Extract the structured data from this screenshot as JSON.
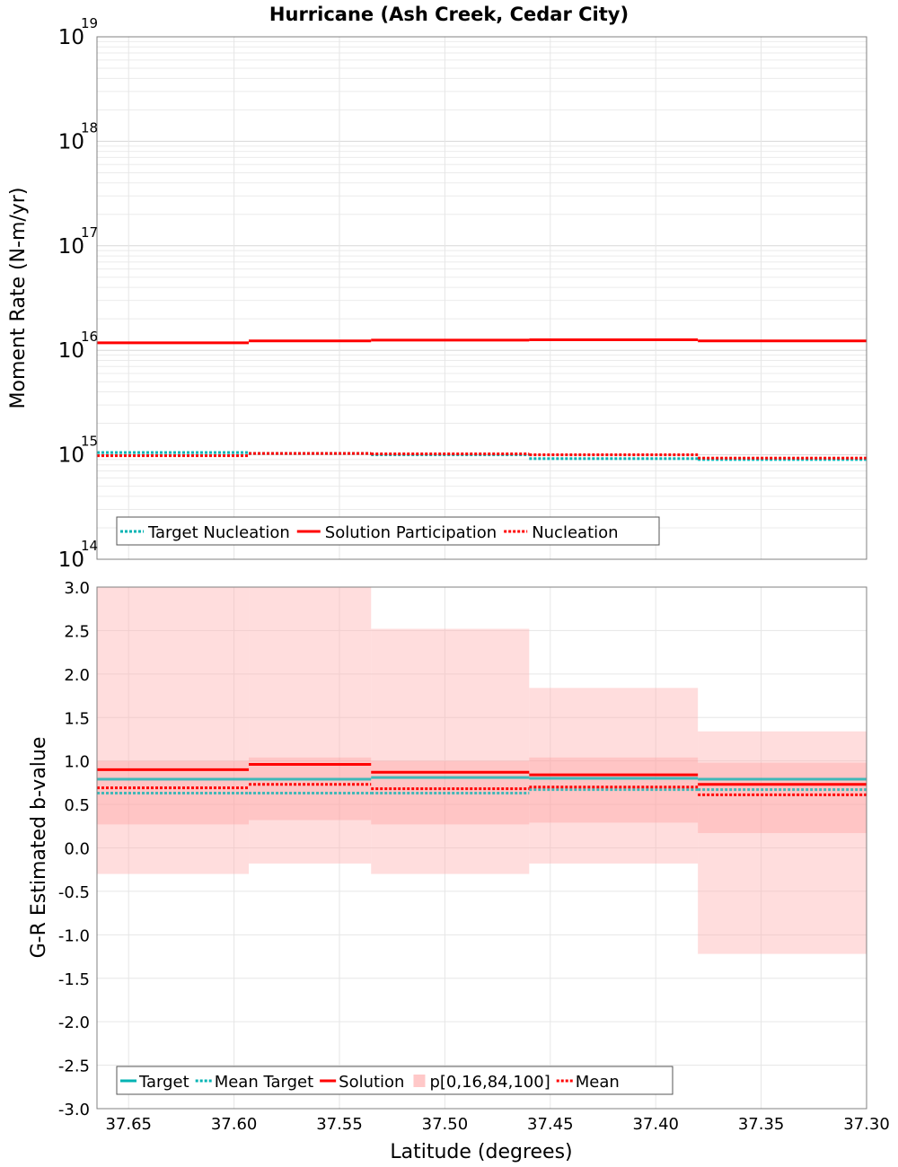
{
  "chart_data": [
    {
      "type": "line",
      "title": "Hurricane (Ash Creek, Cedar City)",
      "ylabel": "Moment Rate (N-m/yr)",
      "xlabel": "",
      "yscale": "log",
      "ylim": [
        100000000000000.0,
        1e+19
      ],
      "xlim": [
        37.665,
        37.3
      ],
      "x_reversed": true,
      "y_ticks": [
        {
          "base": "10",
          "exp": "14",
          "value": 100000000000000.0
        },
        {
          "base": "10",
          "exp": "15",
          "value": 1000000000000000.0
        },
        {
          "base": "10",
          "exp": "16",
          "value": 1e+16
        },
        {
          "base": "10",
          "exp": "17",
          "value": 1e+17
        },
        {
          "base": "10",
          "exp": "18",
          "value": 1e+18
        },
        {
          "base": "10",
          "exp": "19",
          "value": 1e+19
        }
      ],
      "segments": [
        [
          37.665,
          37.593
        ],
        [
          37.593,
          37.535
        ],
        [
          37.535,
          37.46
        ],
        [
          37.46,
          37.38
        ],
        [
          37.38,
          37.3
        ]
      ],
      "series": [
        {
          "name": "Target Nucleation",
          "style": "dotted",
          "color": "#00b3b3",
          "values": [
            1050000000000000.0,
            1030000000000000.0,
            1000000000000000.0,
            920000000000000.0,
            900000000000000.0
          ]
        },
        {
          "name": "Solution Participation",
          "style": "solid",
          "color": "#ff0000",
          "values": [
            1.18e+16,
            1.23e+16,
            1.25e+16,
            1.26e+16,
            1.23e+16
          ]
        },
        {
          "name": "Nucleation",
          "style": "dotted",
          "color": "#ff0000",
          "values": [
            980000000000000.0,
            1030000000000000.0,
            1020000000000000.0,
            1000000000000000.0,
            930000000000000.0
          ]
        }
      ],
      "legend": {
        "position": "bottom-left",
        "items": [
          "Target Nucleation",
          "Solution Participation",
          "Nucleation"
        ]
      },
      "grid": true
    },
    {
      "type": "line",
      "title": "",
      "ylabel": "G-R Estimated b-value",
      "xlabel": "Latitude (degrees)",
      "ylim": [
        -3.0,
        3.0
      ],
      "xlim": [
        37.665,
        37.3
      ],
      "x_reversed": true,
      "x_ticks": [
        "37.65",
        "37.60",
        "37.55",
        "37.50",
        "37.45",
        "37.40",
        "37.35",
        "37.30"
      ],
      "y_ticks": [
        "3.0",
        "2.5",
        "2.0",
        "1.5",
        "1.0",
        "0.5",
        "0.0",
        "-0.5",
        "-1.0",
        "-1.5",
        "-2.0",
        "-2.5",
        "-3.0"
      ],
      "segments": [
        [
          37.665,
          37.593
        ],
        [
          37.593,
          37.535
        ],
        [
          37.535,
          37.46
        ],
        [
          37.46,
          37.38
        ],
        [
          37.38,
          37.3
        ]
      ],
      "bands": {
        "name": "p[0,16,84,100]",
        "outer": [
          [
            -0.3,
            3.0
          ],
          [
            -0.18,
            3.0
          ],
          [
            -0.3,
            2.52
          ],
          [
            -0.18,
            1.84
          ],
          [
            -1.22,
            1.34
          ]
        ],
        "inner": [
          [
            0.27,
            1.0
          ],
          [
            0.32,
            1.04
          ],
          [
            0.27,
            1.0
          ],
          [
            0.29,
            1.04
          ],
          [
            0.17,
            0.98
          ]
        ]
      },
      "series": [
        {
          "name": "Target",
          "style": "solid",
          "color": "#00b3b3",
          "values": [
            0.79,
            0.79,
            0.81,
            0.8,
            0.79
          ]
        },
        {
          "name": "Mean Target",
          "style": "dotted",
          "color": "#00b3b3",
          "values": [
            0.63,
            0.63,
            0.63,
            0.67,
            0.67
          ]
        },
        {
          "name": "Solution",
          "style": "solid",
          "color": "#ff0000",
          "values": [
            0.9,
            0.96,
            0.87,
            0.84,
            0.73
          ]
        },
        {
          "name": "Mean",
          "style": "dotted",
          "color": "#ff0000",
          "values": [
            0.69,
            0.73,
            0.68,
            0.7,
            0.61
          ]
        }
      ],
      "legend": {
        "position": "bottom-left",
        "items": [
          "Target",
          "Mean Target",
          "Solution",
          "p[0,16,84,100]",
          "Mean"
        ]
      },
      "grid": true
    }
  ]
}
